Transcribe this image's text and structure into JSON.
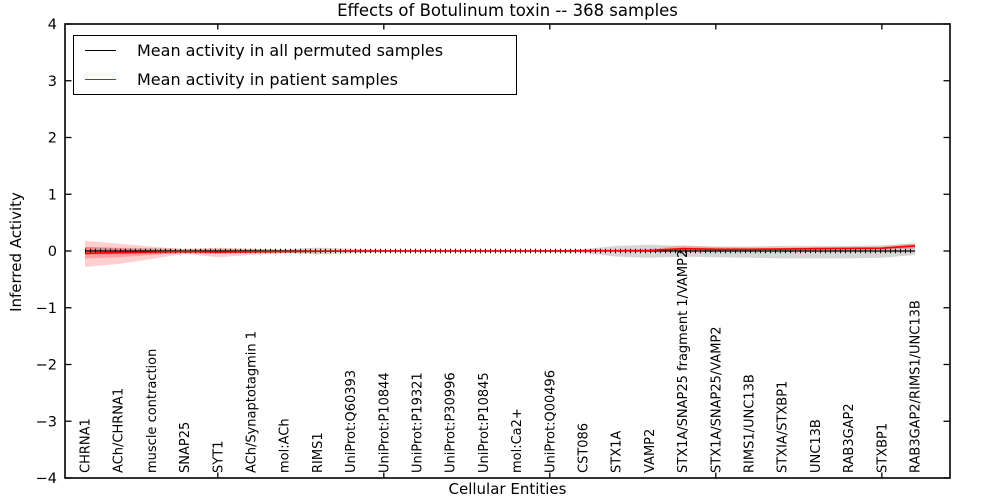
{
  "title": "Effects of Botulinum toxin -- 368 samples",
  "legend": {
    "entries": [
      {
        "label": "Mean activity in all permuted samples",
        "color": "#000000"
      },
      {
        "label": "Mean activity in patient samples",
        "color": "#ff0000"
      }
    ]
  },
  "colors": {
    "permuted_line": "#000000",
    "patient_line": "#ff0000",
    "permuted_band": "rgba(120,120,120,0.30)",
    "patient_band": "rgba(255,30,30,0.22)",
    "axis": "#000000"
  },
  "chart_data": {
    "type": "line",
    "title": "Effects of Botulinum toxin -- 368 samples",
    "xlabel": "Cellular Entities",
    "ylabel": "Inferred Activity",
    "ylim": [
      -4,
      4
    ],
    "yticks": [
      -4,
      -3,
      -2,
      -1,
      0,
      1,
      2,
      3,
      4
    ],
    "ytick_labels": [
      "−4",
      "−3",
      "−2",
      "−1",
      "0",
      "1",
      "2",
      "3",
      "4"
    ],
    "xticks_major_positions": [
      5,
      10,
      15,
      20,
      25
    ],
    "grid": false,
    "legend_position": "upper left",
    "categories": [
      "CHRNA1",
      "ACh/CHRNA1",
      "muscle contraction",
      "SNAP25",
      "SYT1",
      "ACh/Synaptotagmin 1",
      "mol:ACh",
      "RIMS1",
      "UniProt:Q60393",
      "UniProt:P10844",
      "UniProt:P19321",
      "UniProt:P30996",
      "UniProt:P10845",
      "mol:Ca2+",
      "UniProt:Q00496",
      "CST086",
      "STX1A",
      "VAMP2",
      "STX1A/SNAP25 fragment 1/VAMP2",
      "STX1A/SNAP25/VAMP2",
      "RIMS1/UNC13B",
      "STXIA/STXBP1",
      "UNC13B",
      "RAB3GAP2",
      "STXBP1",
      "RAB3GAP2/RIMS1/UNC13B"
    ],
    "series": [
      {
        "name": "Mean activity in all permuted samples",
        "color": "#000000",
        "values": [
          0,
          0,
          0,
          0,
          0,
          0,
          0,
          0,
          0,
          0,
          0,
          0,
          0,
          0,
          0,
          0,
          0,
          0,
          0,
          0,
          0,
          0,
          0,
          0,
          0,
          0
        ]
      },
      {
        "name": "Mean activity in patient samples",
        "color": "#ff0000",
        "values": [
          -0.04,
          -0.03,
          -0.02,
          -0.01,
          -0.02,
          -0.015,
          -0.01,
          -0.005,
          0,
          0,
          0,
          0,
          0,
          0,
          0,
          0.005,
          0.005,
          0.01,
          0.04,
          0.03,
          0.03,
          0.035,
          0.04,
          0.045,
          0.05,
          0.09
        ]
      }
    ],
    "bands": [
      {
        "name": "permuted-sample-range",
        "color": "rgba(120,120,120,0.30)",
        "upper": [
          0.07,
          0.06,
          0.05,
          0.04,
          0.04,
          0.03,
          0.03,
          0.06,
          0.04,
          0.02,
          0.02,
          0.02,
          0.02,
          0.02,
          0.02,
          0.03,
          0.09,
          0.11,
          0.09,
          0.08,
          0.08,
          0.09,
          0.09,
          0.09,
          0.1,
          0.13
        ],
        "lower": [
          -0.07,
          -0.06,
          -0.05,
          -0.04,
          -0.04,
          -0.03,
          -0.03,
          -0.06,
          -0.04,
          -0.02,
          -0.02,
          -0.02,
          -0.02,
          -0.02,
          -0.02,
          -0.03,
          -0.1,
          -0.12,
          -0.1,
          -0.11,
          -0.12,
          -0.13,
          -0.13,
          -0.13,
          -0.12,
          -0.07
        ]
      },
      {
        "name": "patient-range-outer",
        "color": "rgba(255,30,30,0.22)",
        "upper": [
          0.18,
          0.13,
          0.08,
          0.03,
          0.06,
          0.04,
          0.02,
          0.015,
          0.01,
          0.01,
          0.01,
          0.01,
          0.01,
          0.01,
          0.01,
          0.01,
          0.02,
          0.03,
          0.1,
          0.07,
          0.06,
          0.06,
          0.07,
          0.07,
          0.08,
          0.14
        ],
        "lower": [
          -0.28,
          -0.23,
          -0.14,
          -0.05,
          -0.11,
          -0.07,
          -0.04,
          -0.02,
          -0.01,
          -0.01,
          -0.01,
          -0.01,
          -0.01,
          -0.01,
          -0.01,
          -0.01,
          -0.01,
          -0.01,
          -0.01,
          0.0,
          0.0,
          0.0,
          0.01,
          0.01,
          0.02,
          0.04
        ]
      },
      {
        "name": "patient-range-inner",
        "color": "rgba(255,30,30,0.26)",
        "upper": [
          0.07,
          0.05,
          0.03,
          0.01,
          0.02,
          0.015,
          0.01,
          0.01,
          0.005,
          0.005,
          0.005,
          0.005,
          0.005,
          0.005,
          0.005,
          0.005,
          0.01,
          0.02,
          0.06,
          0.05,
          0.045,
          0.05,
          0.055,
          0.055,
          0.06,
          0.11
        ],
        "lower": [
          -0.13,
          -0.11,
          -0.07,
          -0.03,
          -0.05,
          -0.035,
          -0.02,
          -0.01,
          -0.005,
          -0.005,
          -0.005,
          -0.005,
          -0.005,
          -0.005,
          -0.005,
          -0.005,
          0.0,
          0.0,
          0.01,
          0.01,
          0.015,
          0.02,
          0.02,
          0.025,
          0.03,
          0.06
        ]
      }
    ]
  }
}
